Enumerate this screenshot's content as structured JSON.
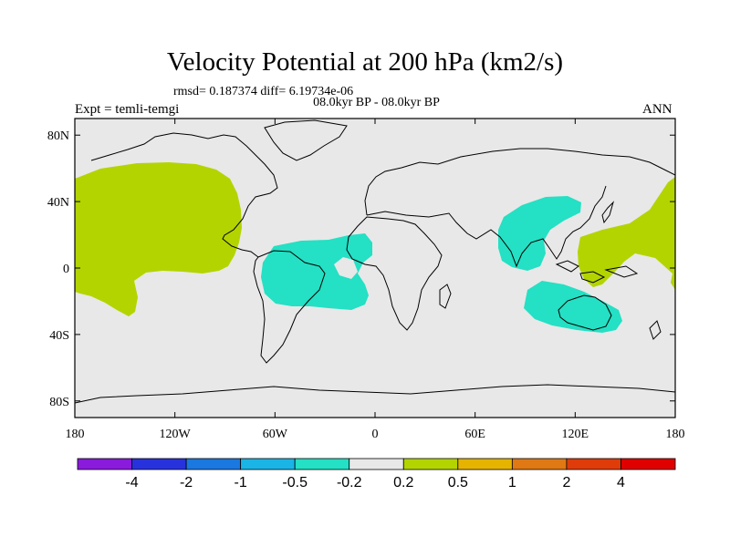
{
  "title": "Velocity Potential at 200 hPa (km2/s)",
  "stats_line": "rmsd= 0.187374 diff= 6.19734e-06",
  "period": "08.0kyr BP - 08.0kyr BP",
  "experiment": "Expt = temli-temgi",
  "season": "ANN",
  "map": {
    "projection": "cylindrical-equidistant",
    "lon_range": [
      -180,
      180
    ],
    "lat_range": [
      -90,
      90
    ],
    "background_color": "#e8e8e8",
    "coastline_color": "#000000",
    "lat_ticks": [
      {
        "value": 80,
        "label": "80N"
      },
      {
        "value": 40,
        "label": "40N"
      },
      {
        "value": 0,
        "label": "0"
      },
      {
        "value": -40,
        "label": "40S"
      },
      {
        "value": -80,
        "label": "80S"
      }
    ],
    "lon_ticks": [
      {
        "value": -180,
        "label": "180"
      },
      {
        "value": -120,
        "label": "120W"
      },
      {
        "value": -60,
        "label": "60W"
      },
      {
        "value": 0,
        "label": "0"
      },
      {
        "value": 60,
        "label": "60E"
      },
      {
        "value": 120,
        "label": "120E"
      },
      {
        "value": 180,
        "label": "180"
      }
    ],
    "shaded_regions": [
      {
        "name": "positive-north-pacific",
        "class": "0.2 to 0.5",
        "color": "#b4d400"
      },
      {
        "name": "negative-south-america-atlantic",
        "class": "-0.5 to -0.2",
        "color": "#24e0c4"
      },
      {
        "name": "negative-asia-indian-ocean",
        "class": "-0.5 to -0.2",
        "color": "#24e0c4"
      },
      {
        "name": "negative-australia",
        "class": "-0.5 to -0.2",
        "color": "#24e0c4"
      },
      {
        "name": "positive-west-pacific",
        "class": "0.2 to 0.5",
        "color": "#b4d400"
      }
    ]
  },
  "colorbar": {
    "colors": [
      "#8a1adc",
      "#2832dc",
      "#1a78e0",
      "#1ab4e6",
      "#24e0c4",
      "#e8e8e8",
      "#b4d400",
      "#e6b400",
      "#e07814",
      "#e03c0a",
      "#e00000"
    ],
    "labels": [
      "-4",
      "-2",
      "-1",
      "-0.5",
      "-0.2",
      "0.2",
      "0.5",
      "1",
      "2",
      "4"
    ]
  }
}
